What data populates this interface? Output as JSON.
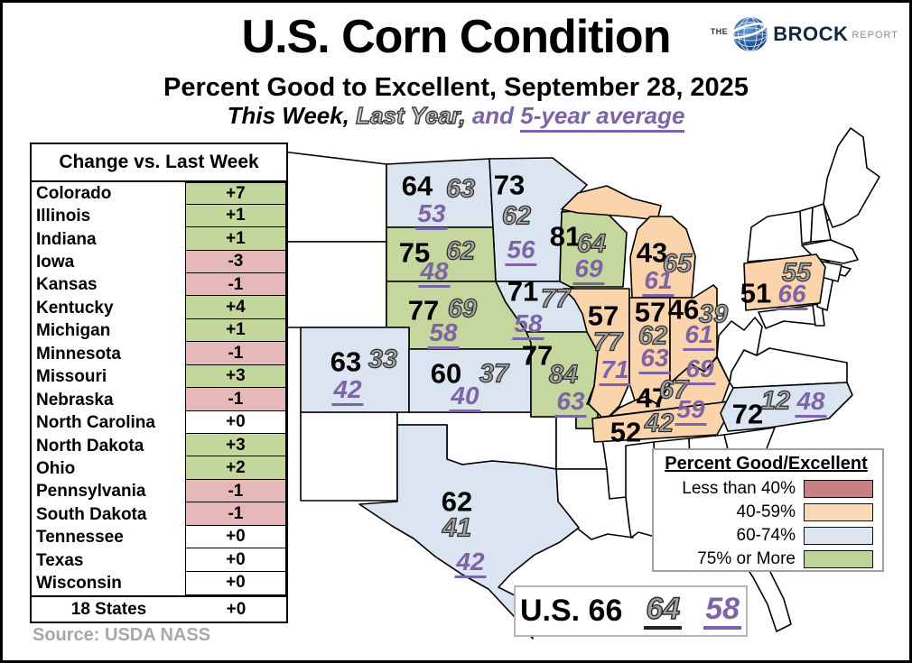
{
  "header": {
    "title": "U.S. Corn Condition",
    "subtitle": "Percent Good to Excellent, September 28, 2025",
    "caption": {
      "this_week": "This Week,",
      "last_year": "Last Year,",
      "conjunction": "and ",
      "five_year": "5-year average"
    },
    "logo": {
      "the": "THE",
      "brand": "BROCK",
      "suffix": "REPORT"
    }
  },
  "change_table": {
    "title": "Change vs. Last Week",
    "total_row": {
      "state": "18 States",
      "change": "+0"
    }
  },
  "legend": {
    "title": "Percent Good/Excellent",
    "items": [
      {
        "label": "Less than 40%",
        "color": "#ca7f85",
        "bucket": "lt40"
      },
      {
        "label": "40-59%",
        "color": "#fcd9b6",
        "bucket": "b40_59"
      },
      {
        "label": "60-74%",
        "color": "#dbe4ef",
        "bucket": "b60_74"
      },
      {
        "label": "75% or More",
        "color": "#bed494",
        "bucket": "b75plus"
      }
    ]
  },
  "map_colors": {
    "lt40": "#ca7f85",
    "b40_59": "#fbd4ac",
    "b60_74": "#dbe5f1",
    "b75plus": "#c5d79d"
  },
  "table_colors": {
    "positive": "#c3d69b",
    "negative": "#e5b9b7",
    "neutral": "#ffffff"
  },
  "us_total": {
    "label": "U.S. 66",
    "this_week": 66,
    "last_year": "64",
    "five_year": "58"
  },
  "source": "Source: USDA NASS",
  "chart_data": {
    "type": "heatmap",
    "subtype": "us-state-choropleth",
    "title": "U.S. Corn Condition",
    "subtitle": "Percent Good to Excellent, September 28, 2025",
    "series_labels": [
      "This Week",
      "Last Year",
      "5-year average"
    ],
    "legend_position": "bottom-right",
    "legend_bins": [
      "Less than 40%",
      "40-59%",
      "60-74%",
      "75% or More"
    ],
    "us_total": {
      "this_week": 66,
      "last_year": 64,
      "five_year_avg": 58,
      "change_vs_last_week": "+0",
      "label": "18 States"
    },
    "states": [
      {
        "state": "Colorado",
        "abbr": "CO",
        "this_week": 63,
        "last_year": 33,
        "five_year_avg": 42,
        "change_vs_last_week": "+7",
        "bucket": "b60_74"
      },
      {
        "state": "Illinois",
        "abbr": "IL",
        "this_week": 57,
        "last_year": 77,
        "five_year_avg": 71,
        "change_vs_last_week": "+1",
        "bucket": "b40_59"
      },
      {
        "state": "Indiana",
        "abbr": "IN",
        "this_week": 57,
        "last_year": 62,
        "five_year_avg": 63,
        "change_vs_last_week": "+1",
        "bucket": "b40_59"
      },
      {
        "state": "Iowa",
        "abbr": "IA",
        "this_week": 71,
        "last_year": 77,
        "five_year_avg": 58,
        "change_vs_last_week": "-3",
        "bucket": "b60_74"
      },
      {
        "state": "Kansas",
        "abbr": "KS",
        "this_week": 60,
        "last_year": 37,
        "five_year_avg": 40,
        "change_vs_last_week": "-1",
        "bucket": "b60_74"
      },
      {
        "state": "Kentucky",
        "abbr": "KY",
        "this_week": 47,
        "last_year": 67,
        "five_year_avg": 69,
        "change_vs_last_week": "+4",
        "bucket": "b40_59"
      },
      {
        "state": "Michigan",
        "abbr": "MI",
        "this_week": 43,
        "last_year": 65,
        "five_year_avg": 61,
        "change_vs_last_week": "+1",
        "bucket": "b40_59"
      },
      {
        "state": "Minnesota",
        "abbr": "MN",
        "this_week": 73,
        "last_year": 62,
        "five_year_avg": 56,
        "change_vs_last_week": "-1",
        "bucket": "b60_74"
      },
      {
        "state": "Missouri",
        "abbr": "MO",
        "this_week": 77,
        "last_year": 84,
        "five_year_avg": 63,
        "change_vs_last_week": "+3",
        "bucket": "b75plus"
      },
      {
        "state": "Nebraska",
        "abbr": "NE",
        "this_week": 77,
        "last_year": 69,
        "five_year_avg": 58,
        "change_vs_last_week": "-1",
        "bucket": "b75plus"
      },
      {
        "state": "North Carolina",
        "abbr": "NC",
        "this_week": 72,
        "last_year": 12,
        "five_year_avg": 48,
        "change_vs_last_week": "+0",
        "bucket": "b60_74"
      },
      {
        "state": "North Dakota",
        "abbr": "ND",
        "this_week": 64,
        "last_year": 63,
        "five_year_avg": 53,
        "change_vs_last_week": "+3",
        "bucket": "b60_74"
      },
      {
        "state": "Ohio",
        "abbr": "OH",
        "this_week": 46,
        "last_year": 39,
        "five_year_avg": 61,
        "change_vs_last_week": "+2",
        "bucket": "b40_59"
      },
      {
        "state": "Pennsylvania",
        "abbr": "PA",
        "this_week": 51,
        "last_year": 55,
        "five_year_avg": 66,
        "change_vs_last_week": "-1",
        "bucket": "b40_59"
      },
      {
        "state": "South Dakota",
        "abbr": "SD",
        "this_week": 75,
        "last_year": 62,
        "five_year_avg": 48,
        "change_vs_last_week": "-1",
        "bucket": "b75plus"
      },
      {
        "state": "Tennessee",
        "abbr": "TN",
        "this_week": 52,
        "last_year": 42,
        "five_year_avg": 59,
        "change_vs_last_week": "+0",
        "bucket": "b40_59"
      },
      {
        "state": "Texas",
        "abbr": "TX",
        "this_week": 62,
        "last_year": 41,
        "five_year_avg": 42,
        "change_vs_last_week": "+0",
        "bucket": "b60_74"
      },
      {
        "state": "Wisconsin",
        "abbr": "WI",
        "this_week": 81,
        "last_year": 64,
        "five_year_avg": 69,
        "change_vs_last_week": "+0",
        "bucket": "b75plus"
      }
    ]
  }
}
